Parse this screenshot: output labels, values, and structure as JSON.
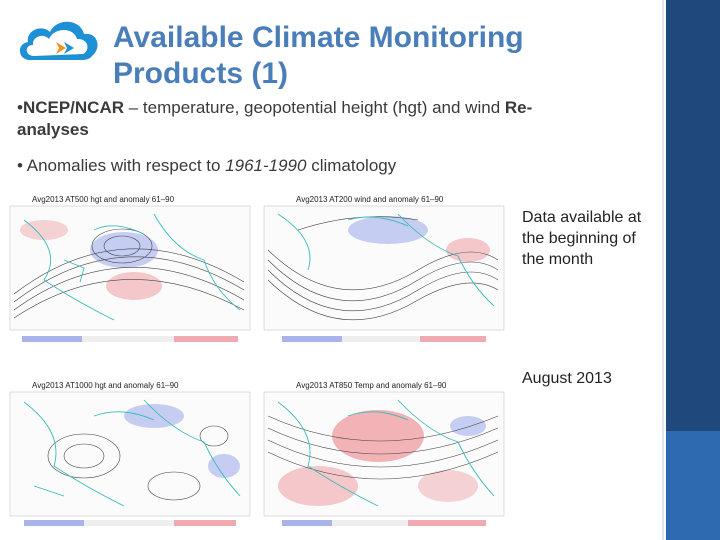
{
  "slide": {
    "title_line1": "Available Climate Monitoring",
    "title_line2": "Products (1)",
    "bullet1": {
      "lead": "NCEP/NCAR",
      "text": " – temperature, geopotential height (hgt) and wind ",
      "tail_line1": "Re-",
      "tail_line2": "analyses"
    },
    "bullet2": {
      "text": "Anomalies with respect to ",
      "period": "1961-1990",
      "tail": " climatology"
    },
    "note_availability": "Data available at the beginning of the month",
    "note_month": "August 2013"
  },
  "maps": [
    {
      "caption": "Avg2013  AT500  hgt and anomaly  61–90"
    },
    {
      "caption": "Avg2013  AT200  wind and anomaly  61–90"
    },
    {
      "caption": "Avg2013  AT1000  hgt and anomaly  61–90"
    },
    {
      "caption": "Avg2013  AT850  Temp and anomaly  61–90"
    }
  ],
  "colors": {
    "title": "#4a7eb8",
    "side_bar": "#1f497d",
    "coast": "#3bbcbc",
    "contour": "#333333",
    "warm": "#e8868a",
    "cold": "#8f9fe0"
  },
  "icons": [
    "cloud-logo-icon"
  ]
}
